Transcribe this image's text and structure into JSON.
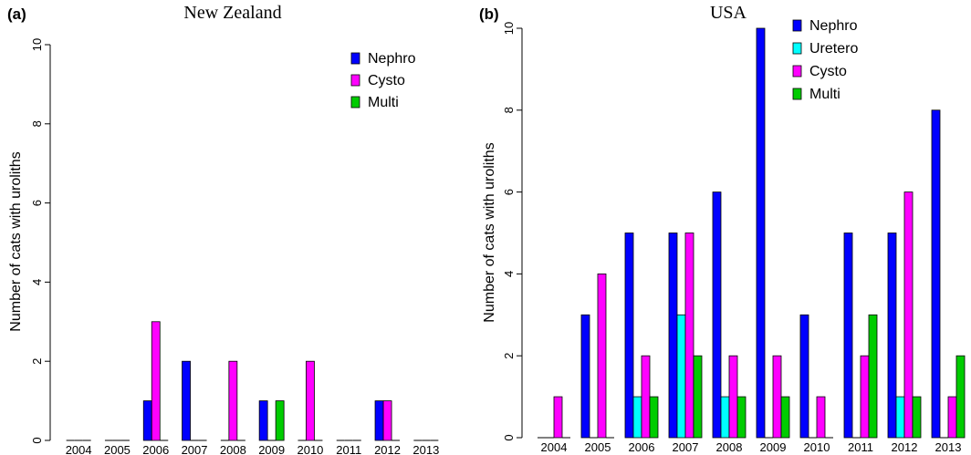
{
  "chart_data": [
    {
      "type": "bar",
      "panel_label": "(a)",
      "title": "New Zealand",
      "xlabel": "",
      "ylabel": "Number of cats with uroliths",
      "ylim": [
        0,
        10
      ],
      "yticks": [
        0,
        2,
        4,
        6,
        8,
        10
      ],
      "categories": [
        "2004",
        "2005",
        "2006",
        "2007",
        "2008",
        "2009",
        "2010",
        "2011",
        "2012",
        "2013"
      ],
      "legend_position": "top-right",
      "series": [
        {
          "name": "Nephro",
          "color": "#0000ff",
          "values": [
            0,
            0,
            1,
            2,
            0,
            1,
            0,
            0,
            1,
            0
          ]
        },
        {
          "name": "Cysto",
          "color": "#ff00ff",
          "values": [
            0,
            0,
            3,
            0,
            2,
            0,
            2,
            0,
            1,
            0
          ]
        },
        {
          "name": "Multi",
          "color": "#00cc00",
          "values": [
            0,
            0,
            0,
            0,
            0,
            1,
            0,
            0,
            0,
            0
          ]
        }
      ]
    },
    {
      "type": "bar",
      "panel_label": "(b)",
      "title": "USA",
      "xlabel": "",
      "ylabel": "Number of cats with uroliths",
      "ylim": [
        0,
        10
      ],
      "yticks": [
        0,
        2,
        4,
        6,
        8,
        10
      ],
      "categories": [
        "2004",
        "2005",
        "2006",
        "2007",
        "2008",
        "2009",
        "2010",
        "2011",
        "2012",
        "2013"
      ],
      "legend_position": "top-right",
      "series": [
        {
          "name": "Nephro",
          "color": "#0000ff",
          "values": [
            0,
            3,
            5,
            5,
            6,
            10,
            3,
            5,
            5,
            8
          ]
        },
        {
          "name": "Uretero",
          "color": "#00ffff",
          "values": [
            0,
            0,
            1,
            3,
            1,
            0,
            0,
            0,
            1,
            0
          ]
        },
        {
          "name": "Cysto",
          "color": "#ff00ff",
          "values": [
            1,
            4,
            2,
            5,
            2,
            2,
            1,
            2,
            6,
            1
          ]
        },
        {
          "name": "Multi",
          "color": "#00cc00",
          "values": [
            0,
            0,
            1,
            2,
            1,
            1,
            0,
            3,
            1,
            2
          ]
        }
      ]
    }
  ]
}
